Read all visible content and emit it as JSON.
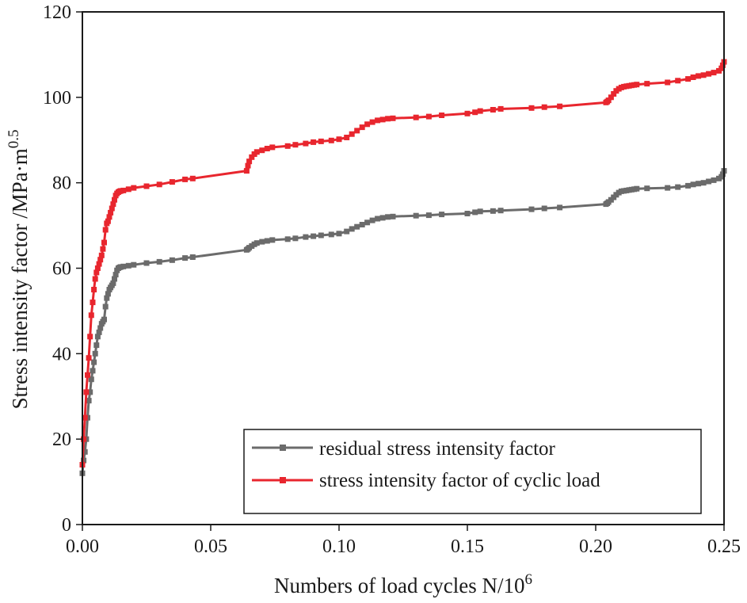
{
  "chart_data": {
    "type": "line",
    "xlabel": "Numbers of load cycles N/10",
    "xlabel_sup": "6",
    "ylabel": "Stress intensity factor /MPa·m",
    "ylabel_sup": "0.5",
    "xlim": [
      0,
      0.25
    ],
    "ylim": [
      0,
      120
    ],
    "xticks": [
      0,
      0.05,
      0.1,
      0.15,
      0.2,
      0.25
    ],
    "xtick_labels": [
      "0.00",
      "0.05",
      "0.10",
      "0.15",
      "0.20",
      "0.25"
    ],
    "yticks": [
      0,
      20,
      40,
      60,
      80,
      100,
      120
    ],
    "ytick_labels": [
      "0",
      "20",
      "40",
      "60",
      "80",
      "100",
      "120"
    ],
    "legend_position": "bottom-right",
    "grid": false,
    "series": [
      {
        "name": "residual stress intensity factor",
        "color": "#6b6b6b",
        "marker": "square",
        "x": [
          0,
          0.0005,
          0.001,
          0.0015,
          0.002,
          0.0025,
          0.003,
          0.0035,
          0.004,
          0.0045,
          0.005,
          0.0055,
          0.006,
          0.0065,
          0.007,
          0.0075,
          0.008,
          0.0085,
          0.009,
          0.0095,
          0.01,
          0.0105,
          0.011,
          0.0115,
          0.012,
          0.0125,
          0.013,
          0.0135,
          0.014,
          0.0145,
          0.015,
          0.016,
          0.018,
          0.02,
          0.025,
          0.03,
          0.035,
          0.04,
          0.043,
          0.064,
          0.0645,
          0.065,
          0.066,
          0.067,
          0.068,
          0.07,
          0.072,
          0.074,
          0.08,
          0.083,
          0.087,
          0.09,
          0.093,
          0.097,
          0.1,
          0.103,
          0.105,
          0.107,
          0.109,
          0.111,
          0.113,
          0.115,
          0.117,
          0.119,
          0.121,
          0.13,
          0.135,
          0.14,
          0.15,
          0.153,
          0.155,
          0.16,
          0.163,
          0.175,
          0.18,
          0.186,
          0.204,
          0.2045,
          0.205,
          0.206,
          0.207,
          0.208,
          0.209,
          0.21,
          0.211,
          0.212,
          0.213,
          0.214,
          0.215,
          0.216,
          0.22,
          0.228,
          0.232,
          0.236,
          0.238,
          0.24,
          0.242,
          0.244,
          0.246,
          0.248,
          0.249,
          0.2495,
          0.25
        ],
        "values": [
          12,
          15,
          17,
          20,
          25,
          29,
          31,
          34,
          36,
          38,
          40,
          42,
          44,
          45,
          46,
          47,
          47.5,
          48,
          51,
          53,
          54,
          55,
          55.5,
          56,
          56.5,
          57.5,
          58.5,
          59.5,
          60,
          60.2,
          60.3,
          60.4,
          60.6,
          60.8,
          61.2,
          61.5,
          61.9,
          62.4,
          62.6,
          64.3,
          64.5,
          64.8,
          65.2,
          65.6,
          65.9,
          66.2,
          66.4,
          66.6,
          66.8,
          67,
          67.3,
          67.5,
          67.7,
          67.9,
          68.1,
          68.6,
          69.2,
          69.7,
          70.2,
          70.7,
          71.2,
          71.6,
          71.8,
          72,
          72.1,
          72.3,
          72.4,
          72.6,
          72.8,
          73.1,
          73.3,
          73.4,
          73.5,
          73.8,
          74,
          74.2,
          75,
          75.2,
          75.5,
          76,
          76.6,
          77.2,
          77.7,
          78,
          78.1,
          78.2,
          78.3,
          78.4,
          78.5,
          78.6,
          78.7,
          78.8,
          79,
          79.3,
          79.6,
          79.8,
          80,
          80.3,
          80.6,
          81,
          81.4,
          82,
          82.8
        ]
      },
      {
        "name": "stress intensity factor of cyclic load",
        "color": "#e8262e",
        "marker": "square",
        "x": [
          0,
          0.0005,
          0.001,
          0.0015,
          0.002,
          0.0025,
          0.003,
          0.0035,
          0.004,
          0.0045,
          0.005,
          0.0055,
          0.006,
          0.0065,
          0.007,
          0.0075,
          0.008,
          0.0085,
          0.009,
          0.0095,
          0.01,
          0.0105,
          0.011,
          0.0115,
          0.012,
          0.0125,
          0.013,
          0.0135,
          0.014,
          0.0145,
          0.015,
          0.016,
          0.018,
          0.02,
          0.025,
          0.03,
          0.035,
          0.04,
          0.043,
          0.064,
          0.0645,
          0.065,
          0.066,
          0.067,
          0.068,
          0.07,
          0.072,
          0.074,
          0.08,
          0.083,
          0.087,
          0.09,
          0.093,
          0.097,
          0.1,
          0.103,
          0.105,
          0.107,
          0.109,
          0.111,
          0.113,
          0.115,
          0.117,
          0.119,
          0.121,
          0.13,
          0.135,
          0.14,
          0.15,
          0.153,
          0.155,
          0.16,
          0.163,
          0.175,
          0.18,
          0.186,
          0.204,
          0.2045,
          0.205,
          0.206,
          0.207,
          0.208,
          0.209,
          0.21,
          0.211,
          0.212,
          0.213,
          0.214,
          0.215,
          0.216,
          0.22,
          0.228,
          0.232,
          0.236,
          0.238,
          0.24,
          0.242,
          0.244,
          0.246,
          0.248,
          0.249,
          0.2495,
          0.25
        ],
        "values": [
          14,
          20,
          25,
          31,
          35,
          39,
          44,
          49,
          52,
          55,
          57.5,
          59,
          60,
          61,
          62,
          63,
          64.5,
          66,
          69,
          70.5,
          71,
          72,
          73,
          74,
          75,
          76,
          77,
          77.5,
          77.8,
          78,
          78.1,
          78.2,
          78.5,
          78.8,
          79.2,
          79.6,
          80.2,
          80.8,
          81,
          82.8,
          84,
          85,
          86,
          86.7,
          87.2,
          87.6,
          88,
          88.3,
          88.6,
          88.9,
          89.2,
          89.5,
          89.7,
          89.9,
          90.2,
          90.6,
          91.4,
          92.2,
          93,
          93.7,
          94.2,
          94.6,
          94.8,
          95,
          95.1,
          95.3,
          95.5,
          95.8,
          96.2,
          96.5,
          96.8,
          97.1,
          97.3,
          97.5,
          97.7,
          97.9,
          98.8,
          99,
          99.3,
          100,
          100.8,
          101.5,
          102,
          102.3,
          102.5,
          102.6,
          102.7,
          102.8,
          102.9,
          103,
          103.2,
          103.5,
          103.9,
          104.3,
          104.7,
          105,
          105.2,
          105.5,
          105.8,
          106.2,
          106.8,
          107.5,
          108.3
        ]
      }
    ]
  }
}
